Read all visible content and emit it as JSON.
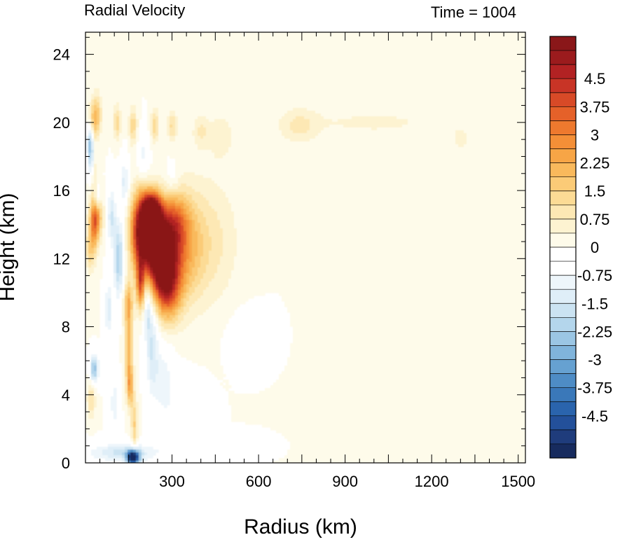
{
  "chart_data": {
    "type": "heatmap",
    "title": "Radial Velocity",
    "subtitle": "Time = 1004",
    "xlabel": "Radius (km)",
    "ylabel": "Height (km)",
    "xlim": [
      0,
      1525
    ],
    "ylim": [
      0,
      25.3
    ],
    "x_ticks": [
      300,
      600,
      900,
      1200,
      1500
    ],
    "y_ticks": [
      0,
      4,
      8,
      12,
      16,
      20,
      24
    ],
    "colorbar": {
      "vmin": -5.625,
      "vmax": 5.625,
      "step": 0.375,
      "tick_labels": [
        "4.5",
        "3.75",
        "3",
        "2.25",
        "1.5",
        "0.75",
        "0",
        "-0.75",
        "-1.5",
        "-2.25",
        "-3",
        "-3.75",
        "-4.5"
      ],
      "tick_values": [
        4.5,
        3.75,
        3,
        2.25,
        1.5,
        0.75,
        0,
        -0.75,
        -1.5,
        -2.25,
        -3,
        -3.75,
        -4.5
      ],
      "colors": [
        "#172b5e",
        "#1f3c7c",
        "#23509a",
        "#2a64ad",
        "#3a78b9",
        "#4e8cc5",
        "#66a1d1",
        "#80b4db",
        "#9bc6e4",
        "#b4d6ec",
        "#cbe3f2",
        "#dfeef8",
        "#eef6fb",
        "#ffffff",
        "#ffffff",
        "#fefbea",
        "#fdf3d1",
        "#fde8b4",
        "#fcdb95",
        "#fbcb77",
        "#f9b95c",
        "#f7a546",
        "#f48f37",
        "#ee792e",
        "#e56129",
        "#d84a27",
        "#c83426",
        "#b22223",
        "#9b1b1d",
        "#8a1719"
      ]
    },
    "features": [
      {
        "x": 195,
        "y": 13.5,
        "sx": 26,
        "sy": 1.6,
        "v": 6.0
      },
      {
        "x": 230,
        "y": 14.8,
        "sx": 22,
        "sy": 0.7,
        "v": 5.0
      },
      {
        "x": 190,
        "y": 10.5,
        "sx": 10,
        "sy": 1.0,
        "v": 3.0
      },
      {
        "x": 245,
        "y": 12.8,
        "sx": 24,
        "sy": 1.6,
        "v": 4.2
      },
      {
        "x": 275,
        "y": 12.0,
        "sx": 35,
        "sy": 1.8,
        "v": 3.0
      },
      {
        "x": 285,
        "y": 10.5,
        "sx": 32,
        "sy": 1.4,
        "v": 3.2
      },
      {
        "x": 305,
        "y": 14.0,
        "sx": 35,
        "sy": 1.3,
        "v": 2.5
      },
      {
        "x": 345,
        "y": 12.5,
        "sx": 45,
        "sy": 2.2,
        "v": 1.6
      },
      {
        "x": 430,
        "y": 13.0,
        "sx": 70,
        "sy": 2.6,
        "v": 0.9
      },
      {
        "x": 150,
        "y": 7.0,
        "sx": 10,
        "sy": 1.8,
        "v": 2.2
      },
      {
        "x": 155,
        "y": 4.5,
        "sx": 8,
        "sy": 0.8,
        "v": 2.0
      },
      {
        "x": 148,
        "y": 9.5,
        "sx": 12,
        "sy": 0.8,
        "v": 1.5
      },
      {
        "x": 30,
        "y": 14.0,
        "sx": 12,
        "sy": 1.2,
        "v": 2.4
      },
      {
        "x": 40,
        "y": 14.5,
        "sx": 14,
        "sy": 0.8,
        "v": 2.0
      },
      {
        "x": 25,
        "y": 17.0,
        "sx": 10,
        "sy": 0.8,
        "v": 1.5
      },
      {
        "x": 15,
        "y": 12.5,
        "sx": 10,
        "sy": 0.9,
        "v": 1.2
      },
      {
        "x": 40,
        "y": 20.5,
        "sx": 12,
        "sy": 0.9,
        "v": 1.4
      },
      {
        "x": 25,
        "y": 20.0,
        "sx": 12,
        "sy": 0.8,
        "v": 1.4
      },
      {
        "x": 110,
        "y": 20.0,
        "sx": 9,
        "sy": 0.7,
        "v": 1.4
      },
      {
        "x": 165,
        "y": 19.8,
        "sx": 10,
        "sy": 0.8,
        "v": 1.4
      },
      {
        "x": 240,
        "y": 19.8,
        "sx": 10,
        "sy": 0.7,
        "v": 1.4
      },
      {
        "x": 300,
        "y": 19.8,
        "sx": 12,
        "sy": 0.6,
        "v": 1.2
      },
      {
        "x": 400,
        "y": 19.5,
        "sx": 20,
        "sy": 0.7,
        "v": 0.8
      },
      {
        "x": 470,
        "y": 19.2,
        "sx": 30,
        "sy": 0.9,
        "v": 0.7
      },
      {
        "x": 740,
        "y": 19.8,
        "sx": 50,
        "sy": 0.8,
        "v": 0.8
      },
      {
        "x": 1000,
        "y": 20.0,
        "sx": 160,
        "sy": 0.5,
        "v": 0.5
      },
      {
        "x": 1300,
        "y": 19.0,
        "sx": 25,
        "sy": 0.6,
        "v": 0.5
      },
      {
        "x": 170,
        "y": 2.2,
        "sx": 8,
        "sy": 1.2,
        "v": 1.5
      },
      {
        "x": 20,
        "y": 3.8,
        "sx": 10,
        "sy": 0.8,
        "v": 1.2
      },
      {
        "x": 165,
        "y": 0.3,
        "sx": 15,
        "sy": 0.3,
        "v": -6.0
      },
      {
        "x": 130,
        "y": 0.6,
        "sx": 90,
        "sy": 0.4,
        "v": -1.6
      },
      {
        "x": 30,
        "y": 5.5,
        "sx": 10,
        "sy": 0.6,
        "v": -2.6
      },
      {
        "x": 20,
        "y": 17.5,
        "sx": 8,
        "sy": 1.0,
        "v": -2.2
      },
      {
        "x": 15,
        "y": 19.0,
        "sx": 8,
        "sy": 0.8,
        "v": -2.0
      },
      {
        "x": 40,
        "y": 15.5,
        "sx": 8,
        "sy": 0.6,
        "v": -1.5
      },
      {
        "x": 115,
        "y": 12.0,
        "sx": 12,
        "sy": 1.6,
        "v": -2.2
      },
      {
        "x": 90,
        "y": 14.5,
        "sx": 10,
        "sy": 1.2,
        "v": -1.5
      },
      {
        "x": 135,
        "y": 16.5,
        "sx": 10,
        "sy": 1.0,
        "v": -1.3
      },
      {
        "x": 80,
        "y": 9.0,
        "sx": 10,
        "sy": 1.2,
        "v": -1.3
      },
      {
        "x": 230,
        "y": 7.0,
        "sx": 15,
        "sy": 2.0,
        "v": -1.5
      },
      {
        "x": 215,
        "y": 9.0,
        "sx": 8,
        "sy": 1.0,
        "v": -1.3
      },
      {
        "x": 270,
        "y": 5.0,
        "sx": 25,
        "sy": 1.5,
        "v": -0.9
      },
      {
        "x": 330,
        "y": 2.5,
        "sx": 50,
        "sy": 1.5,
        "v": -0.6
      },
      {
        "x": 100,
        "y": 3.5,
        "sx": 12,
        "sy": 1.2,
        "v": -1.0
      },
      {
        "x": 560,
        "y": 7.5,
        "sx": 45,
        "sy": 1.0,
        "v": -0.5
      },
      {
        "x": 500,
        "y": 1.0,
        "sx": 60,
        "sy": 0.4,
        "v": -0.5
      },
      {
        "x": 200,
        "y": 18.0,
        "sx": 15,
        "sy": 1.0,
        "v": -0.9
      },
      {
        "x": 300,
        "y": 16.5,
        "sx": 20,
        "sy": 0.8,
        "v": -0.6
      }
    ]
  }
}
